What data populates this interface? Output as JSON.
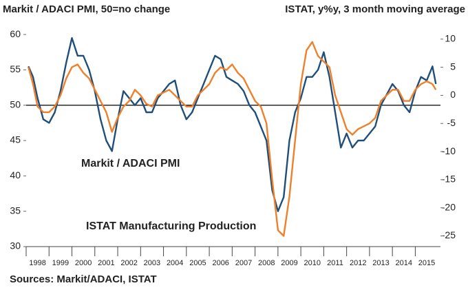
{
  "chart_data": {
    "type": "line",
    "title": "Markit / ADACI PMI, 50=no change",
    "y2_title": "ISTAT, y%y, 3 month moving average",
    "source": "Sources: Markit/ADACI, ISTAT",
    "x": [
      1998.1,
      1998.3,
      1998.5,
      1998.75,
      1999.0,
      1999.25,
      1999.5,
      1999.75,
      2000.0,
      2000.25,
      2000.5,
      2000.75,
      2001.0,
      2001.25,
      2001.5,
      2001.75,
      2002.0,
      2002.25,
      2002.5,
      2002.75,
      2003.0,
      2003.25,
      2003.5,
      2003.75,
      2004.0,
      2004.25,
      2004.5,
      2004.75,
      2005.0,
      2005.25,
      2005.5,
      2005.75,
      2006.0,
      2006.25,
      2006.5,
      2006.75,
      2007.0,
      2007.25,
      2007.5,
      2007.75,
      2008.0,
      2008.25,
      2008.5,
      2008.75,
      2009.0,
      2009.25,
      2009.5,
      2009.75,
      2010.0,
      2010.25,
      2010.5,
      2010.75,
      2011.0,
      2011.25,
      2011.5,
      2011.75,
      2012.0,
      2012.25,
      2012.5,
      2012.75,
      2013.0,
      2013.25,
      2013.5,
      2013.75,
      2014.0,
      2014.25,
      2014.5,
      2014.75,
      2015.0,
      2015.25,
      2015.5,
      2015.75,
      2015.9
    ],
    "series": [
      {
        "name": "Markit / ADACI PMI",
        "color": "#1f4e79",
        "axis": "y",
        "values": [
          55.5,
          54,
          51,
          48,
          47.5,
          49,
          52,
          56,
          59.5,
          57,
          57,
          55,
          52,
          48,
          45,
          43.5,
          48,
          52,
          51,
          50,
          51,
          49,
          49,
          51,
          52,
          53,
          53.5,
          50,
          48,
          49,
          51,
          53,
          55,
          57,
          56.5,
          54,
          53.5,
          53,
          52,
          50,
          49,
          47,
          45,
          38,
          35,
          37,
          45,
          49,
          51,
          54,
          54,
          55,
          57.5,
          54,
          49,
          44,
          46,
          44,
          45,
          45,
          46,
          47,
          50,
          51.5,
          53,
          52,
          50,
          49,
          52,
          54,
          53.5,
          55.5,
          53
        ]
      },
      {
        "name": "ISTAT Manufacturing Production",
        "color": "#f07f2a",
        "axis": "y2",
        "values": [
          5,
          2,
          -2,
          -3,
          -3,
          -2,
          0,
          3,
          5,
          5.5,
          4,
          3,
          1,
          -1,
          -3,
          -6.5,
          -4,
          -2,
          -1,
          1,
          0,
          -1.5,
          -2,
          0,
          0.5,
          1,
          0,
          -1,
          -2,
          -2,
          0,
          1,
          2,
          4,
          5,
          4.5,
          5.5,
          4,
          3,
          1,
          -1,
          -2,
          -5,
          -15,
          -24,
          -25,
          -18,
          -8,
          2,
          8,
          9.5,
          7,
          6,
          5,
          0,
          -3,
          -6,
          -7,
          -6,
          -5.5,
          -5,
          -4,
          -1,
          0,
          1,
          1,
          -1,
          -1,
          1,
          2,
          2.5,
          2,
          1
        ]
      }
    ],
    "xlim": [
      1998.0,
      2016.1
    ],
    "xticks": [
      1998,
      1999,
      2000,
      2001,
      2002,
      2003,
      2004,
      2005,
      2006,
      2007,
      2008,
      2009,
      2010,
      2011,
      2012,
      2013,
      2014,
      2015
    ],
    "ylim": [
      30,
      60.3
    ],
    "yticks": [
      30,
      35,
      40,
      45,
      50,
      55,
      60
    ],
    "y2lim": [
      -26.9,
      11.2
    ],
    "y2ticks": [
      -25,
      -20,
      -15,
      -10,
      -5,
      0,
      5,
      10
    ],
    "reference_line": 50
  }
}
